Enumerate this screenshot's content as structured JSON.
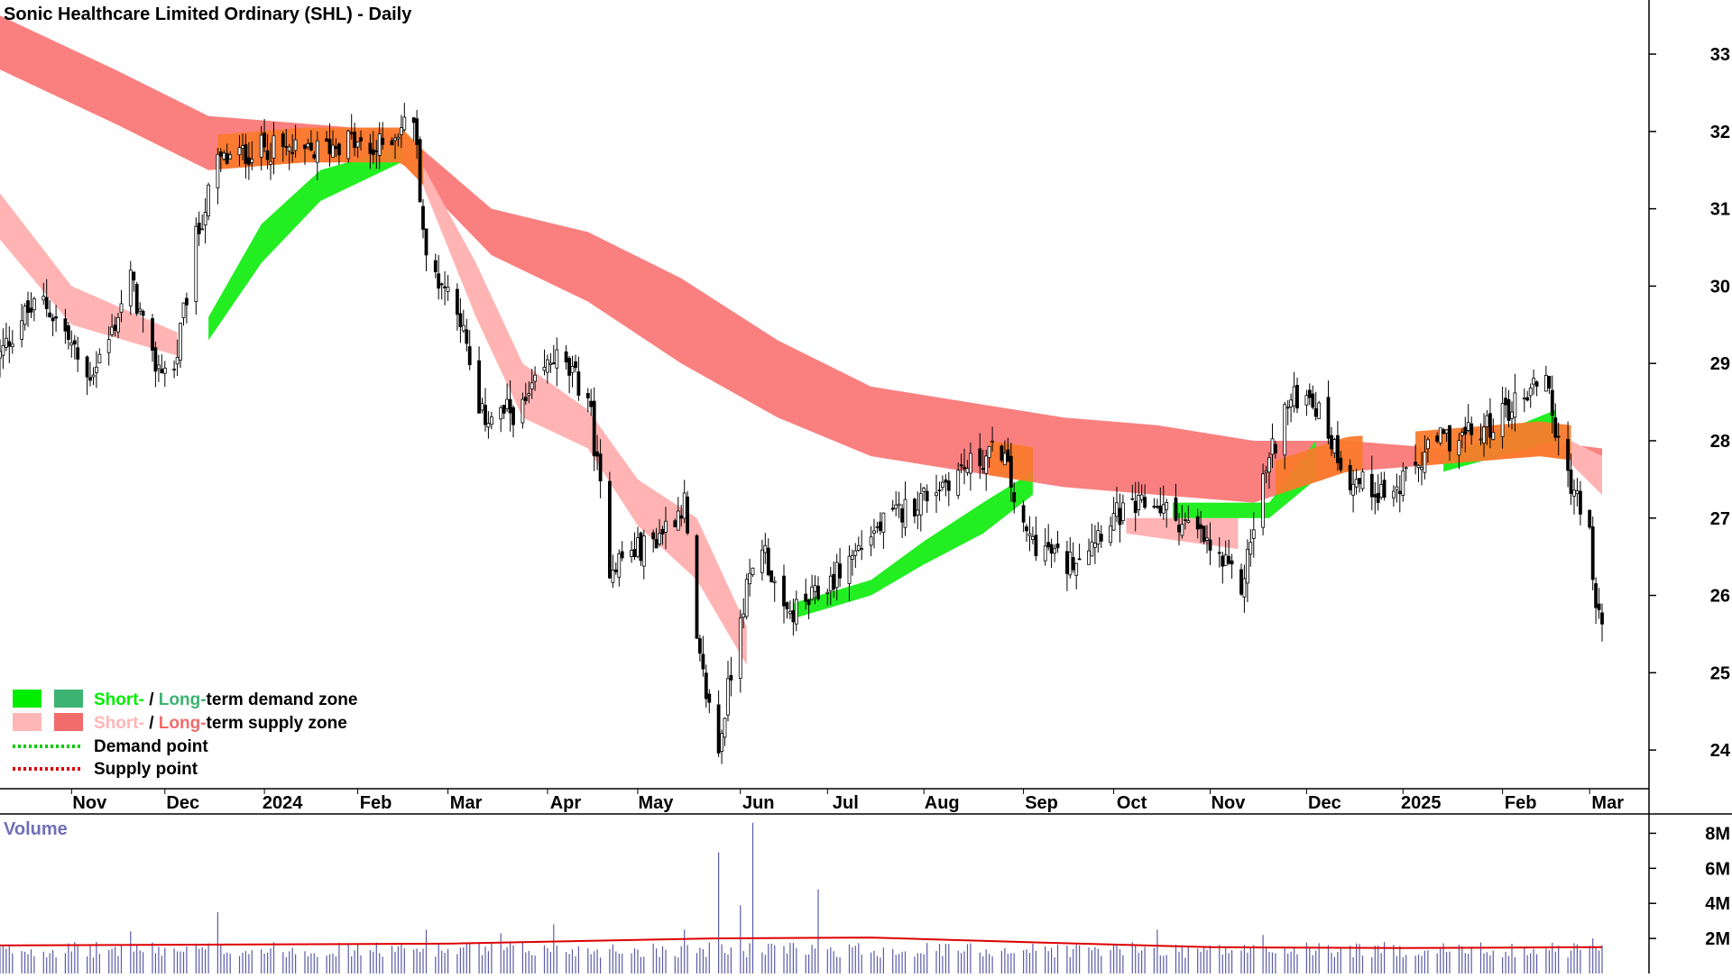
{
  "chart_data": {
    "type": "candlestick",
    "title": "Sonic Healthcare Limited Ordinary (SHL) - Daily",
    "price_axis": {
      "ylim": [
        23.5,
        33.7
      ],
      "ticks": [
        24,
        25,
        26,
        27,
        28,
        29,
        30,
        31,
        32,
        33
      ]
    },
    "x_axis": {
      "tick_labels": [
        "Nov",
        "Dec",
        "2024",
        "Feb",
        "Mar",
        "Apr",
        "May",
        "Jun",
        "Jul",
        "Aug",
        "Sep",
        "Oct",
        "Nov",
        "Dec",
        "2025",
        "Feb",
        "Mar"
      ]
    },
    "x_start": "2023-10-09",
    "x_end": "2025-03-07",
    "price_path": [
      [
        "2023-10-09",
        29.1
      ],
      [
        "2023-10-16",
        29.6
      ],
      [
        "2023-10-23",
        29.8
      ],
      [
        "2023-10-30",
        29.4
      ],
      [
        "2023-11-06",
        28.8
      ],
      [
        "2023-11-13",
        29.3
      ],
      [
        "2023-11-20",
        30.1
      ],
      [
        "2023-11-27",
        29.0
      ],
      [
        "2023-12-04",
        28.9
      ],
      [
        "2023-12-11",
        30.6
      ],
      [
        "2023-12-18",
        31.6
      ],
      [
        "2024-01-02",
        31.8
      ],
      [
        "2024-01-15",
        31.7
      ],
      [
        "2024-01-29",
        31.9
      ],
      [
        "2024-02-05",
        31.7
      ],
      [
        "2024-02-19",
        32.2
      ],
      [
        "2024-02-23",
        30.3
      ],
      [
        "2024-03-04",
        29.8
      ],
      [
        "2024-03-11",
        28.3
      ],
      [
        "2024-03-25",
        28.4
      ],
      [
        "2024-04-04",
        29.1
      ],
      [
        "2024-04-15",
        28.6
      ],
      [
        "2024-04-22",
        26.4
      ],
      [
        "2024-05-06",
        26.7
      ],
      [
        "2024-05-16",
        27.2
      ],
      [
        "2024-05-20",
        25.3
      ],
      [
        "2024-05-27",
        24.0
      ],
      [
        "2024-06-03",
        25.8
      ],
      [
        "2024-06-10",
        26.7
      ],
      [
        "2024-06-17",
        25.7
      ],
      [
        "2024-06-28",
        26.0
      ],
      [
        "2024-07-15",
        26.8
      ],
      [
        "2024-07-29",
        27.2
      ],
      [
        "2024-08-12",
        27.6
      ],
      [
        "2024-08-26",
        27.9
      ],
      [
        "2024-09-02",
        26.8
      ],
      [
        "2024-09-16",
        26.4
      ],
      [
        "2024-09-30",
        27.0
      ],
      [
        "2024-10-14",
        27.2
      ],
      [
        "2024-10-28",
        26.8
      ],
      [
        "2024-11-11",
        26.1
      ],
      [
        "2024-11-18",
        27.5
      ],
      [
        "2024-11-25",
        28.4
      ],
      [
        "2024-12-02",
        28.7
      ],
      [
        "2024-12-16",
        27.5
      ],
      [
        "2024-12-30",
        27.3
      ],
      [
        "2025-01-13",
        28.0
      ],
      [
        "2025-01-27",
        28.1
      ],
      [
        "2025-02-10",
        28.6
      ],
      [
        "2025-02-17",
        28.9
      ],
      [
        "2025-02-21",
        27.9
      ],
      [
        "2025-03-03",
        26.8
      ],
      [
        "2025-03-04",
        26.1
      ],
      [
        "2025-03-07",
        25.6
      ]
    ],
    "long_term_supply_zone": [
      [
        "2023-10-09",
        33.5,
        32.8
      ],
      [
        "2023-11-15",
        32.8,
        32.1
      ],
      [
        "2023-12-15",
        32.2,
        31.5
      ],
      [
        "2024-01-15",
        32.1,
        31.6
      ],
      [
        "2024-02-15",
        32.0,
        31.6
      ],
      [
        "2024-03-15",
        31.0,
        30.4
      ],
      [
        "2024-04-15",
        30.7,
        29.8
      ],
      [
        "2024-05-15",
        30.1,
        29.0
      ],
      [
        "2024-06-15",
        29.3,
        28.3
      ],
      [
        "2024-07-15",
        28.7,
        27.8
      ],
      [
        "2024-08-15",
        28.5,
        27.6
      ],
      [
        "2024-09-15",
        28.3,
        27.4
      ],
      [
        "2024-10-15",
        28.2,
        27.3
      ],
      [
        "2024-11-15",
        28.0,
        27.2
      ],
      [
        "2024-12-15",
        28.0,
        27.6
      ],
      [
        "2025-01-15",
        27.9,
        27.7
      ],
      [
        "2025-02-15",
        28.0,
        27.8
      ],
      [
        "2025-03-07",
        27.9,
        27.7
      ]
    ],
    "short_term_supply_zone": [
      [
        "2023-10-09",
        31.2,
        30.6
      ],
      [
        "2023-11-01",
        30.0,
        29.5
      ],
      [
        "2023-12-05",
        29.4,
        29.1
      ],
      [
        "2024-02-20",
        31.7,
        31.5
      ],
      [
        "2024-03-10",
        30.3,
        29.6
      ],
      [
        "2024-03-25",
        29.0,
        28.3
      ],
      [
        "2024-04-15",
        28.4,
        27.9
      ],
      [
        "2024-05-01",
        27.5,
        26.9
      ],
      [
        "2024-05-20",
        27.0,
        26.2
      ],
      [
        "2024-06-05",
        25.6,
        25.1
      ],
      [
        "2024-10-05",
        27.0,
        26.8
      ],
      [
        "2024-11-10",
        27.0,
        26.6
      ],
      [
        "2025-02-25",
        28.0,
        27.7
      ],
      [
        "2025-03-07",
        27.8,
        27.3
      ]
    ],
    "short_term_demand_zone": [
      [
        "2023-12-15",
        29.6,
        29.3
      ],
      [
        "2024-01-01",
        30.8,
        30.3
      ],
      [
        "2024-01-20",
        31.5,
        31.1
      ],
      [
        "2024-02-15",
        31.8,
        31.6
      ],
      [
        "2024-06-20",
        25.9,
        25.7
      ],
      [
        "2024-07-15",
        26.2,
        26.0
      ],
      [
        "2024-08-01",
        26.7,
        26.4
      ],
      [
        "2024-08-20",
        27.2,
        26.8
      ],
      [
        "2024-09-05",
        27.6,
        27.3
      ],
      [
        "2024-10-20",
        27.2,
        27.0
      ],
      [
        "2024-11-20",
        27.2,
        27.0
      ],
      [
        "2024-12-05",
        28.0,
        27.5
      ],
      [
        "2025-01-15",
        27.8,
        27.6
      ],
      [
        "2025-02-20",
        28.4,
        28.0
      ]
    ],
    "volume": {
      "axis_label": "Volume",
      "ylim": [
        0,
        9
      ],
      "ticks": [
        "2M",
        "4M",
        "6M",
        "8M"
      ],
      "tick_values": [
        2,
        4,
        6,
        8
      ],
      "average_level": 1.9,
      "spikes": [
        [
          "2023-11-20",
          2.4
        ],
        [
          "2023-12-18",
          3.5
        ],
        [
          "2024-02-23",
          2.5
        ],
        [
          "2024-03-18",
          2.3
        ],
        [
          "2024-04-04",
          2.8
        ],
        [
          "2024-05-16",
          2.5
        ],
        [
          "2024-05-27",
          6.9
        ],
        [
          "2024-06-03",
          3.9
        ],
        [
          "2024-06-07",
          8.6
        ],
        [
          "2024-06-28",
          4.8
        ],
        [
          "2024-10-15",
          2.5
        ],
        [
          "2024-11-18",
          2.2
        ],
        [
          "2025-03-04",
          2.0
        ]
      ]
    },
    "legend": [
      {
        "label_a": "Short-",
        "sep": " / ",
        "label_b": "Long-",
        "rest": "term demand zone",
        "color_a": "#00ee00",
        "color_b": "#3cb371"
      },
      {
        "label_a": "Short-",
        "sep": " / ",
        "label_b": "Long-",
        "rest": "term supply zone",
        "color_a": "#ffb6b6",
        "color_b": "#f26b6b"
      },
      {
        "label": "Demand point",
        "color": "#00cc00"
      },
      {
        "label": "Supply point",
        "color": "#dd0000"
      }
    ],
    "colors": {
      "long_supply": "#fa8080",
      "short_supply": "#ffb3b3",
      "short_demand": "#22ee22",
      "overlap": "#fa7a2c",
      "volume_bar": "#5b5ba8",
      "volume_avg": "#dd0000",
      "candle": "#000000"
    }
  }
}
